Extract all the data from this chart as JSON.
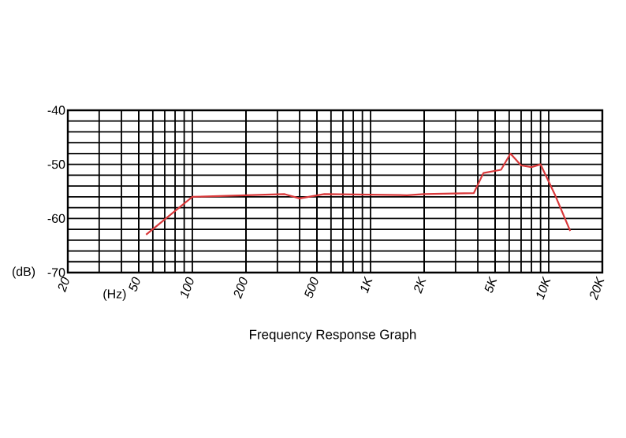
{
  "chart_data": {
    "type": "line",
    "title": "Frequency Response Graph",
    "xlabel": "(Hz)",
    "ylabel": "(dB)",
    "x": [
      55,
      100,
      200,
      330,
      400,
      550,
      1000,
      1600,
      2000,
      3800,
      4300,
      5400,
      6100,
      7000,
      8000,
      9000,
      10800,
      13200
    ],
    "series": [
      {
        "color": "#d9383a",
        "values": [
          -63,
          -56,
          -55.7,
          -55.5,
          -56.3,
          -55.5,
          -55.6,
          -55.7,
          -55.5,
          -55.3,
          -51.6,
          -51,
          -48,
          -50.2,
          -50.5,
          -50,
          -55.5,
          -62.3
        ]
      }
    ],
    "log": "x",
    "xlim": [
      20,
      20000
    ],
    "ylim": [
      -70,
      -40
    ],
    "xticks": [
      20,
      50,
      100,
      200,
      500,
      {
        "value": 1000,
        "label": "1K"
      },
      {
        "value": 2000,
        "label": "2K"
      },
      {
        "value": 5000,
        "label": "5K"
      },
      {
        "value": 10000,
        "label": "10K"
      },
      {
        "value": 20000,
        "label": "20K"
      }
    ],
    "yticks": [
      -70,
      -60,
      -50,
      -40
    ],
    "grid": true,
    "marker": "none",
    "line_style": "solid"
  }
}
